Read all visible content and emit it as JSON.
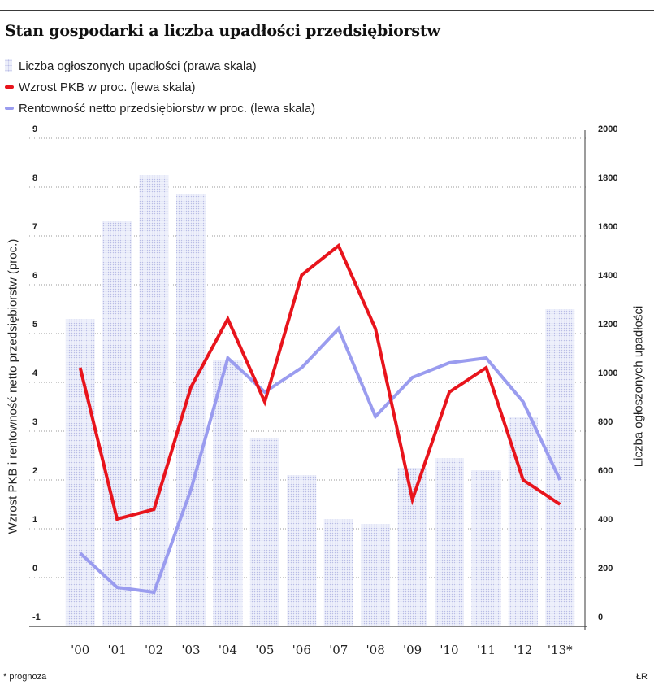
{
  "header": {
    "title": "Stan gospodarki a liczba upadłości przedsiębiorstw"
  },
  "legend": [
    {
      "label": "Liczba ogłoszonych upadłości (prawa skala)",
      "kind": "bar"
    },
    {
      "label": "Wzrost PKB w proc. (lewa skala)",
      "kind": "line",
      "color": "#e8141c"
    },
    {
      "label": "Rentowność netto przedsiębiorstw w proc. (lewa skala)",
      "kind": "line",
      "color": "#9a9cef"
    }
  ],
  "axes": {
    "left_title": "Wzrost PKB i rentowność netto przedsiębiorstw (proc.)",
    "right_title": "Liczba ogłoszonych upadłości"
  },
  "footer": {
    "footnote": "* prognoza",
    "source": "ŁR"
  },
  "colors": {
    "bar_fill": "#eef0fb",
    "bar_dot": "#b9bde6",
    "pkb": "#e8141c",
    "rentownosc": "#9a9cef",
    "grid": "#9a9a9a",
    "axis": "#3a3a3a"
  },
  "chart_data": {
    "type": "bar+line",
    "title": "Stan gospodarki a liczba upadłości przedsiębiorstw",
    "categories": [
      "'00",
      "'01",
      "'02",
      "'03",
      "'04",
      "'05",
      "'06",
      "'07",
      "'08",
      "'09",
      "'10",
      "'11",
      "'12",
      "'13*"
    ],
    "left_axis": {
      "label": "Wzrost PKB i rentowność netto przedsiębiorstw (proc.)",
      "range": [
        -1,
        9
      ],
      "ticks": [
        "-1",
        "0",
        "1",
        "2",
        "3",
        "4",
        "5",
        "6",
        "7",
        "8",
        "9"
      ]
    },
    "right_axis": {
      "label": "Liczba ogłoszonych upadłości",
      "range": [
        0,
        2000
      ],
      "ticks": [
        "0",
        "200",
        "400",
        "600",
        "800",
        "1000",
        "1200",
        "1400",
        "1600",
        "1800",
        "2000"
      ]
    },
    "grid": true,
    "series": [
      {
        "name": "Liczba ogłoszonych upadłości (prawa skala)",
        "type": "bar",
        "axis": "right",
        "values": [
          1260,
          1660,
          1850,
          1770,
          1090,
          770,
          620,
          440,
          420,
          650,
          690,
          640,
          860,
          1300
        ]
      },
      {
        "name": "Wzrost PKB w proc. (lewa skala)",
        "type": "line",
        "axis": "left",
        "values": [
          4.3,
          1.2,
          1.4,
          3.9,
          5.3,
          3.6,
          6.2,
          6.8,
          5.1,
          1.6,
          3.8,
          4.3,
          2.0,
          1.5
        ]
      },
      {
        "name": "Rentowność netto przedsiębiorstw w proc. (lewa skala)",
        "type": "line",
        "axis": "left",
        "values": [
          0.5,
          -0.2,
          -0.3,
          1.8,
          4.5,
          3.8,
          4.3,
          5.1,
          3.3,
          4.1,
          4.4,
          4.5,
          3.6,
          2.0
        ]
      }
    ]
  }
}
